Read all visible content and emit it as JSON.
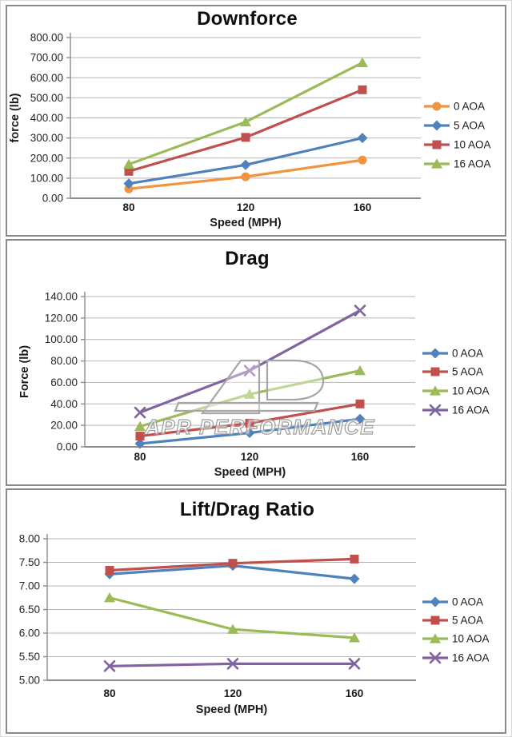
{
  "page": {
    "background": "#ffffff",
    "panel_border_color": "#8a8a8a",
    "gridline_color": "#b4b4b4",
    "axis_color": "#8c8c8c",
    "text_color": "#1a1a1a"
  },
  "chart_data": [
    {
      "id": "downforce",
      "type": "line",
      "title": "Downforce",
      "xlabel": "Speed (MPH)",
      "ylabel": "force (lb)",
      "categories": [
        "80",
        "120",
        "160"
      ],
      "x_values": [
        80,
        120,
        160
      ],
      "ylim": [
        0,
        800
      ],
      "ystep": 100,
      "tick_decimals": 2,
      "grid": true,
      "legend_position": "right",
      "series": [
        {
          "name": "0 AOA",
          "color": "#F0943F",
          "marker": "circle",
          "values": [
            47,
            107,
            190
          ]
        },
        {
          "name": "5 AOA",
          "color": "#4F81BD",
          "marker": "diamond",
          "values": [
            73,
            166,
            300
          ]
        },
        {
          "name": "10 AOA",
          "color": "#C0504D",
          "marker": "square",
          "values": [
            134,
            303,
            540
          ]
        },
        {
          "name": "16 AOA",
          "color": "#9BBB59",
          "marker": "triangle",
          "values": [
            169,
            380,
            675
          ]
        }
      ]
    },
    {
      "id": "drag",
      "type": "line",
      "title": "Drag",
      "xlabel": "Speed (MPH)",
      "ylabel": "Force (lb)",
      "categories": [
        "80",
        "120",
        "160"
      ],
      "x_values": [
        80,
        120,
        160
      ],
      "ylim": [
        0,
        140
      ],
      "ystep": 20,
      "tick_decimals": 2,
      "grid": true,
      "legend_position": "right",
      "watermark": {
        "text": "APR PERFORMANCE"
      },
      "series": [
        {
          "name": "0 AOA",
          "color": "#4F81BD",
          "marker": "diamond",
          "values": [
            3,
            13,
            26
          ]
        },
        {
          "name": "5 AOA",
          "color": "#C0504D",
          "marker": "square",
          "values": [
            10,
            22,
            40
          ]
        },
        {
          "name": "10 AOA",
          "color": "#9BBB59",
          "marker": "triangle",
          "values": [
            19,
            49,
            71
          ]
        },
        {
          "name": "16 AOA",
          "color": "#8064A2",
          "marker": "x",
          "values": [
            32,
            71,
            127
          ]
        }
      ]
    },
    {
      "id": "lift-drag-ratio",
      "type": "line",
      "title": "Lift/Drag Ratio",
      "xlabel": "Speed (MPH)",
      "ylabel": "",
      "categories": [
        "80",
        "120",
        "160"
      ],
      "x_values": [
        80,
        120,
        160
      ],
      "ylim": [
        5,
        8
      ],
      "ystep": 0.5,
      "tick_decimals": 2,
      "grid": true,
      "legend_position": "right",
      "series": [
        {
          "name": "0 AOA",
          "color": "#4F81BD",
          "marker": "diamond",
          "values": [
            7.25,
            7.43,
            7.15
          ]
        },
        {
          "name": "5 AOA",
          "color": "#C0504D",
          "marker": "square",
          "values": [
            7.33,
            7.48,
            7.57
          ]
        },
        {
          "name": "10 AOA",
          "color": "#9BBB59",
          "marker": "triangle",
          "values": [
            6.75,
            6.08,
            5.9
          ]
        },
        {
          "name": "16 AOA",
          "color": "#8064A2",
          "marker": "x",
          "values": [
            5.3,
            5.35,
            5.35
          ]
        }
      ]
    }
  ]
}
